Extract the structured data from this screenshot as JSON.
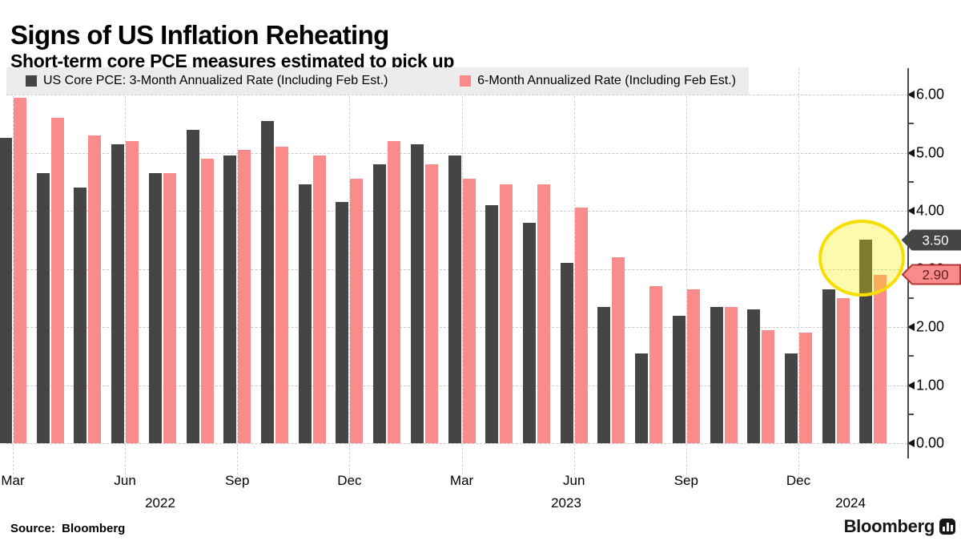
{
  "header": {
    "title": "Signs of US Inflation Reheating",
    "subtitle": "Short-term core PCE measures estimated to pick up"
  },
  "legend": {
    "items": [
      {
        "label": "US Core PCE: 3-Month Annualized Rate (Including Feb Est.)",
        "color": "#454545"
      },
      {
        "label": "6-Month Annualized Rate (Including Feb Est.)",
        "color": "#f98b8b"
      }
    ]
  },
  "chart_data": {
    "type": "bar",
    "title": "Signs of US Inflation Reheating",
    "subtitle": "Short-term core PCE measures estimated to pick up",
    "xlabel": "",
    "ylabel": "",
    "ylim": [
      0,
      6.3
    ],
    "grid": "dashed",
    "legend_position": "top-left",
    "categories": [
      "Mar 2022",
      "Apr 2022",
      "May 2022",
      "Jun 2022",
      "Jul 2022",
      "Aug 2022",
      "Sep 2022",
      "Oct 2022",
      "Nov 2022",
      "Dec 2022",
      "Jan 2023",
      "Feb 2023",
      "Mar 2023",
      "Apr 2023",
      "May 2023",
      "Jun 2023",
      "Jul 2023",
      "Aug 2023",
      "Sep 2023",
      "Oct 2023",
      "Nov 2023",
      "Dec 2023",
      "Jan 2024",
      "Feb 2024"
    ],
    "series": [
      {
        "name": "US Core PCE: 3-Month Annualized Rate (Including Feb Est.)",
        "color": "#454545",
        "values": [
          5.25,
          4.65,
          4.4,
          5.15,
          4.65,
          5.4,
          4.95,
          5.55,
          4.45,
          4.15,
          4.8,
          5.15,
          4.95,
          4.1,
          3.8,
          3.1,
          2.35,
          1.55,
          2.2,
          2.35,
          2.3,
          1.55,
          2.65,
          3.5
        ]
      },
      {
        "name": "6-Month Annualized Rate (Including Feb Est.)",
        "color": "#f98b8b",
        "values": [
          5.95,
          5.6,
          5.3,
          5.2,
          4.65,
          4.9,
          5.05,
          5.1,
          4.95,
          4.55,
          5.2,
          4.8,
          4.55,
          4.45,
          4.45,
          4.05,
          3.2,
          2.7,
          2.65,
          2.35,
          1.95,
          1.9,
          2.5,
          2.9
        ]
      }
    ],
    "y_ticks": [
      "0.00",
      "1.00",
      "2.00",
      "3.00",
      "4.00",
      "5.00",
      "6.00"
    ],
    "x_ticks": [
      {
        "index": 0,
        "label": "Mar"
      },
      {
        "index": 3,
        "label": "Jun"
      },
      {
        "index": 6,
        "label": "Sep"
      },
      {
        "index": 9,
        "label": "Dec"
      },
      {
        "index": 12,
        "label": "Mar"
      },
      {
        "index": 15,
        "label": "Jun"
      },
      {
        "index": 18,
        "label": "Sep"
      },
      {
        "index": 21,
        "label": "Dec"
      }
    ],
    "year_labels": [
      "2022",
      "2023",
      "2024"
    ],
    "annotations": {
      "highlight": {
        "shape": "ellipse",
        "around": "Feb 2024 estimate bars",
        "border_color": "#f6df00",
        "fill_color": "rgba(252,238,0,0.32)"
      },
      "value_tags": [
        {
          "label": "3.50",
          "value": 3.5,
          "fill": "#454545",
          "stroke": "#454545",
          "text_color": "#ffffff"
        },
        {
          "label": "2.90",
          "value": 2.9,
          "fill": "#f98b8b",
          "stroke": "#b03535",
          "text_color": "#5a1f1f"
        }
      ]
    }
  },
  "footer": {
    "source": "Source:  Bloomberg",
    "brand": "Bloomberg"
  }
}
